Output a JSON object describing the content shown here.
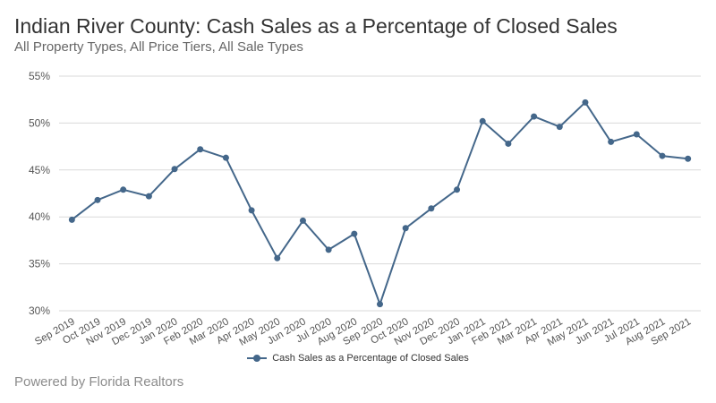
{
  "header": {
    "title": "Indian River County: Cash Sales as a Percentage of Closed Sales",
    "subtitle": "All Property Types, All Price Tiers, All Sale Types"
  },
  "footer": {
    "credit": "Powered by Florida Realtors"
  },
  "colors": {
    "series": "#44678a",
    "grid": "#d9d9d9",
    "axis_text": "#555555"
  },
  "chart_data": {
    "type": "line",
    "categories": [
      "Sep 2019",
      "Oct 2019",
      "Nov 2019",
      "Dec 2019",
      "Jan 2020",
      "Feb 2020",
      "Mar 2020",
      "Apr 2020",
      "May 2020",
      "Jun 2020",
      "Jul 2020",
      "Aug 2020",
      "Sep 2020",
      "Oct 2020",
      "Nov 2020",
      "Dec 2020",
      "Jan 2021",
      "Feb 2021",
      "Mar 2021",
      "Apr 2021",
      "May 2021",
      "Jun 2021",
      "Jul 2021",
      "Aug 2021",
      "Sep 2021"
    ],
    "series": [
      {
        "name": "Cash Sales as a Percentage of Closed Sales",
        "values": [
          39.7,
          41.8,
          42.9,
          42.2,
          45.1,
          47.2,
          46.3,
          40.7,
          35.6,
          39.6,
          36.5,
          38.2,
          30.7,
          38.8,
          40.9,
          42.9,
          50.2,
          47.8,
          50.7,
          49.6,
          52.2,
          48.0,
          48.8,
          46.5,
          46.2
        ]
      }
    ],
    "ylim": [
      30,
      55
    ],
    "yticks": [
      30,
      35,
      40,
      45,
      50,
      55
    ],
    "ytick_labels": [
      "30%",
      "35%",
      "40%",
      "45%",
      "50%",
      "55%"
    ],
    "grid": true,
    "legend": "bottom-center"
  }
}
